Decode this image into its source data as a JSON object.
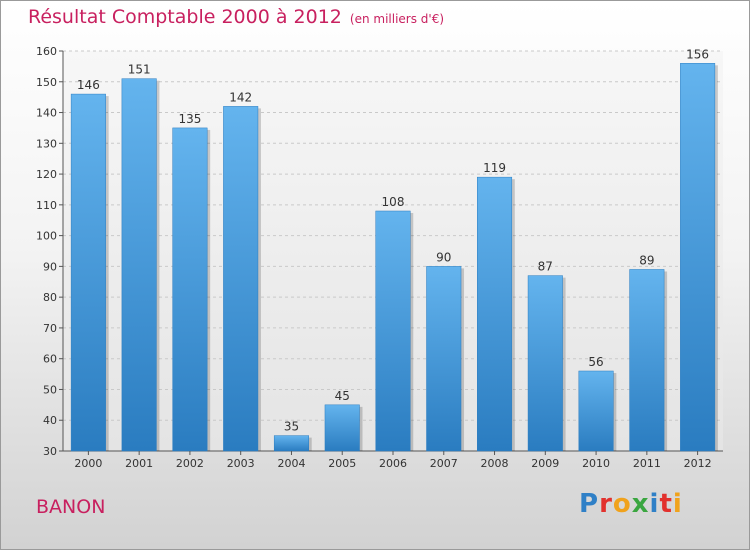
{
  "header": {
    "title": "Résultat Comptable 2000 à 2012",
    "unit": "(en milliers d'€)"
  },
  "footer": {
    "commune": "BANON",
    "logo_letters": [
      "P",
      "r",
      "o",
      "x",
      "i",
      "t",
      "i"
    ],
    "logo_colors": [
      "#2f80c7",
      "#e2312d",
      "#f0a21c",
      "#3aa640",
      "#2f80c7",
      "#e2312d",
      "#f0a21c"
    ]
  },
  "colors": {
    "bar_top": "#64b4ee",
    "bar_bottom": "#2a7cc0",
    "title": "#c8205f"
  },
  "chart_data": {
    "type": "bar",
    "title": "Résultat Comptable 2000 à 2012",
    "subtitle": "(en milliers d'€)",
    "xlabel": "",
    "ylabel": "",
    "categories": [
      "2000",
      "2001",
      "2002",
      "2003",
      "2004",
      "2005",
      "2006",
      "2007",
      "2008",
      "2009",
      "2010",
      "2011",
      "2012"
    ],
    "values": [
      146,
      151,
      135,
      142,
      35,
      45,
      108,
      90,
      119,
      87,
      56,
      89,
      156
    ],
    "ylim": [
      30,
      160
    ],
    "yticks": [
      30,
      40,
      50,
      60,
      70,
      80,
      90,
      100,
      110,
      120,
      130,
      140,
      150,
      160
    ],
    "grid": true,
    "legend": "none"
  }
}
